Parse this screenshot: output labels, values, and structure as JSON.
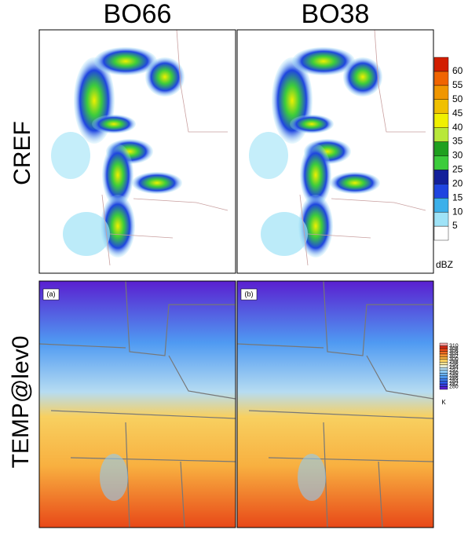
{
  "columns": [
    "BO66",
    "BO38"
  ],
  "rows": [
    "CREF",
    "TEMP@lev0"
  ],
  "panel_labels": [
    "(a)",
    "(b)"
  ],
  "colorbars": [
    {
      "unit": "dBZ",
      "ticks": [
        5,
        10,
        15,
        20,
        25,
        30,
        35,
        40,
        45,
        50,
        55,
        60
      ],
      "colors": [
        "#ffffff",
        "#9fe3f7",
        "#3cb0ea",
        "#1f45e0",
        "#13209a",
        "#3ccc3c",
        "#1fa01f",
        "#b8e83a",
        "#f0f000",
        "#f0c000",
        "#f09600",
        "#f06400",
        "#d21e00"
      ]
    },
    {
      "unit": "K",
      "ticks": [
        280,
        282,
        284,
        286,
        288,
        290,
        292,
        294,
        296,
        298,
        300,
        302,
        304,
        306,
        308,
        310
      ],
      "colors": [
        "#5a1fd0",
        "#3a3ae0",
        "#2d5ae8",
        "#3c7cf0",
        "#4f9af2",
        "#6cb4f4",
        "#8fcaf4",
        "#b6dcf2",
        "#e6ecd6",
        "#f6e69a",
        "#f8d060",
        "#f8b040",
        "#f69030",
        "#f06a22",
        "#e84818",
        "#d82814",
        "#f0a0a0"
      ]
    }
  ]
}
